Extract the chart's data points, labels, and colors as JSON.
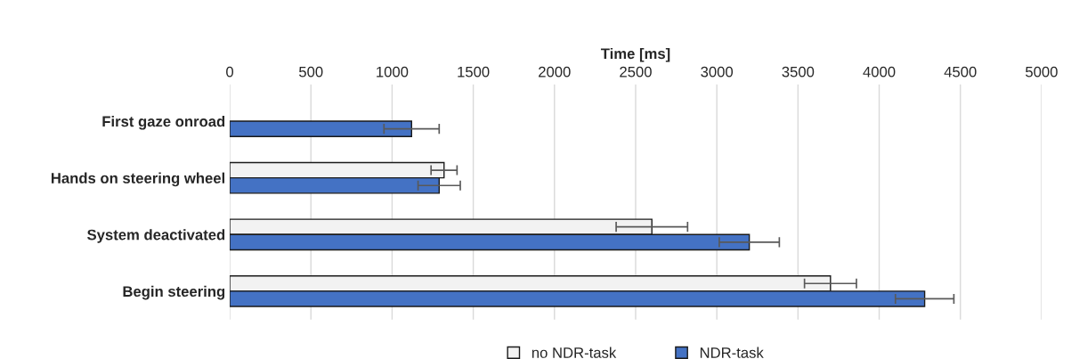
{
  "chart_data": {
    "type": "bar",
    "orientation": "horizontal",
    "xlabel": "Time [ms]",
    "categories": [
      "First gaze onroad",
      "Hands on steering wheel",
      "System deactivated",
      "Begin steering"
    ],
    "series": [
      {
        "name": "no NDR-task",
        "color": "#f2f2f2",
        "values": [
          null,
          1320,
          2600,
          3700
        ],
        "errors": [
          null,
          80,
          220,
          160
        ]
      },
      {
        "name": "NDR-task",
        "color": "#4472c4",
        "values": [
          1120,
          1290,
          3200,
          4280
        ],
        "errors": [
          170,
          130,
          185,
          180
        ]
      }
    ],
    "xlim": [
      0,
      5000
    ],
    "xticks": [
      0,
      500,
      1000,
      1500,
      2000,
      2500,
      3000,
      3500,
      4000,
      4500,
      5000
    ],
    "grid": "x",
    "legend": "bottom"
  }
}
